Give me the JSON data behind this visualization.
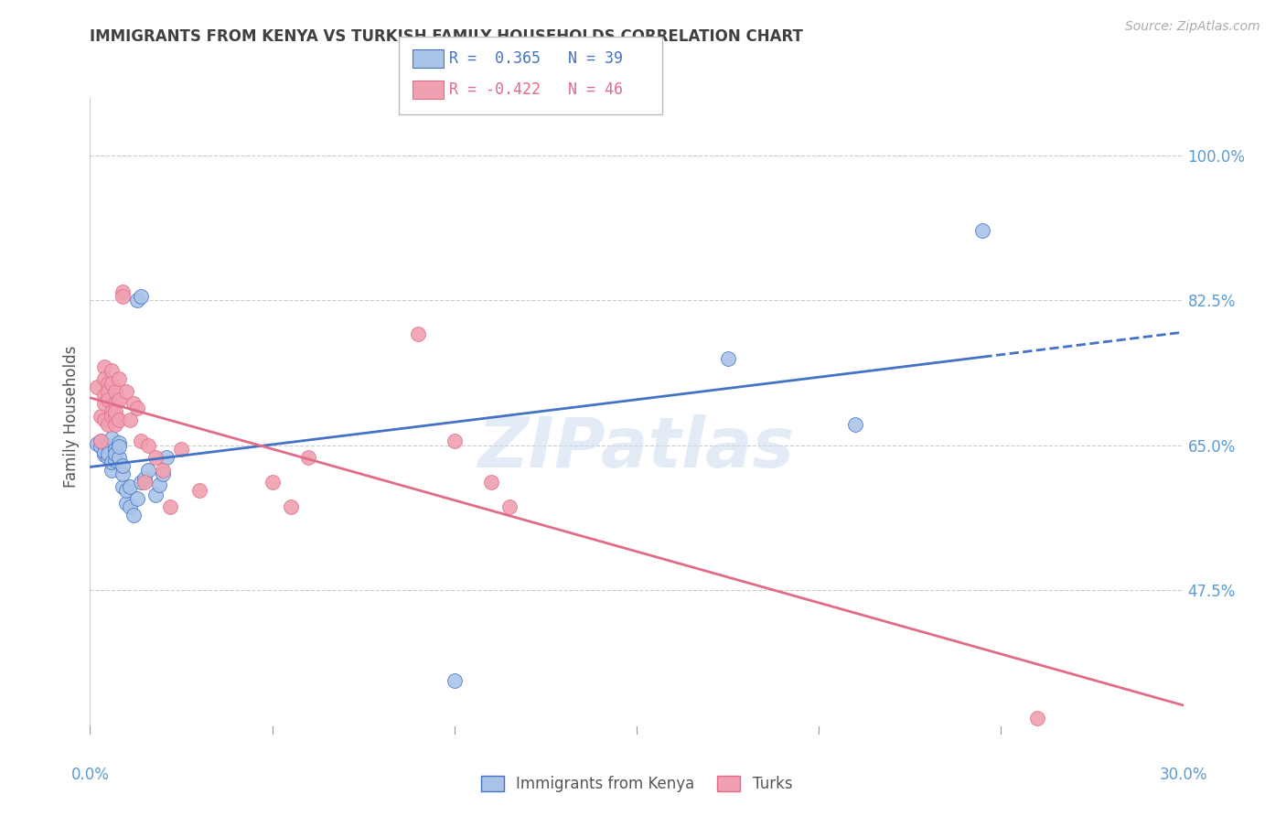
{
  "title": "IMMIGRANTS FROM KENYA VS TURKISH FAMILY HOUSEHOLDS CORRELATION CHART",
  "source": "Source: ZipAtlas.com",
  "ylabel": "Family Households",
  "y_ticks": [
    47.5,
    65.0,
    82.5,
    100.0
  ],
  "y_tick_labels": [
    "47.5%",
    "65.0%",
    "82.5%",
    "100.0%"
  ],
  "y_min": 30.0,
  "y_max": 107.0,
  "x_min": 0.0,
  "x_max": 0.3,
  "kenya_scatter": [
    [
      0.002,
      65.2
    ],
    [
      0.003,
      64.8
    ],
    [
      0.003,
      65.5
    ],
    [
      0.004,
      63.8
    ],
    [
      0.004,
      64.2
    ],
    [
      0.005,
      65.0
    ],
    [
      0.005,
      63.5
    ],
    [
      0.005,
      64.0
    ],
    [
      0.006,
      65.8
    ],
    [
      0.006,
      62.0
    ],
    [
      0.006,
      63.0
    ],
    [
      0.007,
      64.5
    ],
    [
      0.007,
      63.2
    ],
    [
      0.007,
      64.0
    ],
    [
      0.008,
      65.3
    ],
    [
      0.008,
      63.5
    ],
    [
      0.008,
      64.8
    ],
    [
      0.009,
      60.0
    ],
    [
      0.009,
      61.5
    ],
    [
      0.009,
      62.5
    ],
    [
      0.01,
      58.0
    ],
    [
      0.01,
      59.5
    ],
    [
      0.011,
      57.5
    ],
    [
      0.011,
      60.0
    ],
    [
      0.013,
      58.5
    ],
    [
      0.014,
      60.5
    ],
    [
      0.015,
      61.0
    ],
    [
      0.016,
      62.0
    ],
    [
      0.018,
      59.0
    ],
    [
      0.019,
      60.2
    ],
    [
      0.02,
      61.5
    ],
    [
      0.021,
      63.5
    ],
    [
      0.012,
      56.5
    ],
    [
      0.013,
      82.5
    ],
    [
      0.014,
      83.0
    ],
    [
      0.1,
      36.5
    ],
    [
      0.175,
      75.5
    ],
    [
      0.21,
      67.5
    ],
    [
      0.245,
      91.0
    ]
  ],
  "turks_scatter": [
    [
      0.002,
      72.0
    ],
    [
      0.003,
      68.5
    ],
    [
      0.003,
      65.5
    ],
    [
      0.004,
      74.5
    ],
    [
      0.004,
      73.0
    ],
    [
      0.004,
      71.0
    ],
    [
      0.004,
      70.0
    ],
    [
      0.004,
      68.0
    ],
    [
      0.005,
      67.5
    ],
    [
      0.005,
      72.5
    ],
    [
      0.005,
      71.5
    ],
    [
      0.005,
      70.5
    ],
    [
      0.006,
      69.0
    ],
    [
      0.006,
      68.5
    ],
    [
      0.006,
      74.0
    ],
    [
      0.006,
      72.5
    ],
    [
      0.007,
      70.0
    ],
    [
      0.007,
      68.5
    ],
    [
      0.007,
      71.5
    ],
    [
      0.007,
      69.0
    ],
    [
      0.007,
      67.5
    ],
    [
      0.008,
      73.0
    ],
    [
      0.008,
      70.5
    ],
    [
      0.008,
      68.0
    ],
    [
      0.009,
      83.5
    ],
    [
      0.009,
      83.0
    ],
    [
      0.01,
      71.5
    ],
    [
      0.011,
      68.0
    ],
    [
      0.012,
      70.0
    ],
    [
      0.013,
      69.5
    ],
    [
      0.014,
      65.5
    ],
    [
      0.015,
      60.5
    ],
    [
      0.016,
      65.0
    ],
    [
      0.018,
      63.5
    ],
    [
      0.02,
      62.0
    ],
    [
      0.022,
      57.5
    ],
    [
      0.025,
      64.5
    ],
    [
      0.03,
      59.5
    ],
    [
      0.05,
      60.5
    ],
    [
      0.055,
      57.5
    ],
    [
      0.06,
      63.5
    ],
    [
      0.09,
      78.5
    ],
    [
      0.1,
      65.5
    ],
    [
      0.11,
      60.5
    ],
    [
      0.115,
      57.5
    ],
    [
      0.26,
      32.0
    ]
  ],
  "kenya_line_color": "#4472c4",
  "turks_line_color": "#e06c88",
  "kenya_dot_color": "#aac4e8",
  "turks_dot_color": "#f0a0b0",
  "background_color": "#ffffff",
  "grid_color": "#cccccc",
  "tick_label_color": "#5b9bd5",
  "title_color": "#404040",
  "watermark": "ZIPatlas",
  "legend_r1": "R =  0.365   N = 39",
  "legend_r2": "R = -0.422   N = 46"
}
